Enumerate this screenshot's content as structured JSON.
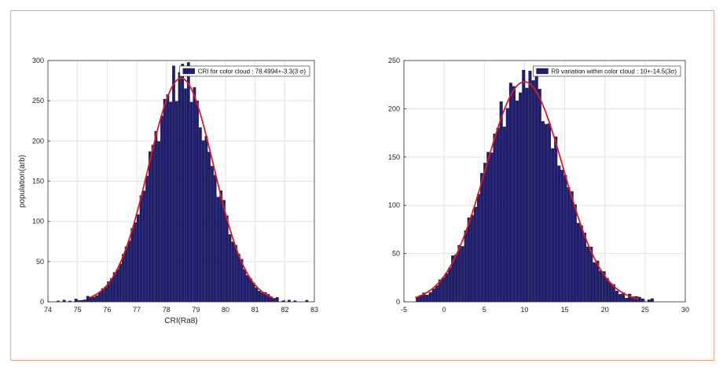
{
  "chart_data": [
    {
      "type": "bar",
      "xlabel": "CRI(Ra8)",
      "ylabel": "population(arb)",
      "xlim": [
        74,
        83
      ],
      "ylim": [
        0,
        300
      ],
      "xticks": [
        "74",
        "75",
        "76",
        "77",
        "78",
        "79",
        "80",
        "81",
        "82",
        "83"
      ],
      "yticks": [
        "0",
        "50",
        "100",
        "150",
        "200",
        "250",
        "300"
      ],
      "grid": true,
      "legend": {
        "label": "CRI for color cloud : 78.4994+-3.3(3 σ)",
        "placement": "top-right"
      },
      "histogram": {
        "mean": 78.5,
        "sigma": 1.1,
        "peak": 278,
        "range": [
          74.2,
          82.8
        ],
        "bin_width": 0.1
      },
      "fit": {
        "mean": 78.5,
        "sigma": 1.1,
        "peak": 278,
        "range": [
          75.4,
          81.6
        ]
      },
      "colors": {
        "bar": "#1f1f6e",
        "fit": "#e01b1b"
      }
    },
    {
      "type": "bar",
      "xlabel": "",
      "ylabel": "",
      "xlim": [
        -5,
        30
      ],
      "ylim": [
        0,
        250
      ],
      "xticks": [
        "-5",
        "0",
        "5",
        "10",
        "15",
        "20",
        "25",
        "30"
      ],
      "yticks": [
        "0",
        "50",
        "100",
        "150",
        "200",
        "250"
      ],
      "grid": true,
      "legend": {
        "label": "R9 variation within color cloud : 10+-14.5(3σ)",
        "placement": "top-right"
      },
      "histogram": {
        "mean": 10,
        "sigma": 4.83,
        "peak": 228,
        "range": [
          -3.5,
          26
        ],
        "bin_width": 0.4
      },
      "fit": {
        "mean": 10,
        "sigma": 4.83,
        "peak": 228,
        "range": [
          -3.6,
          24.2
        ]
      },
      "colors": {
        "bar": "#1f1f6e",
        "fit": "#e01b1b"
      }
    }
  ]
}
